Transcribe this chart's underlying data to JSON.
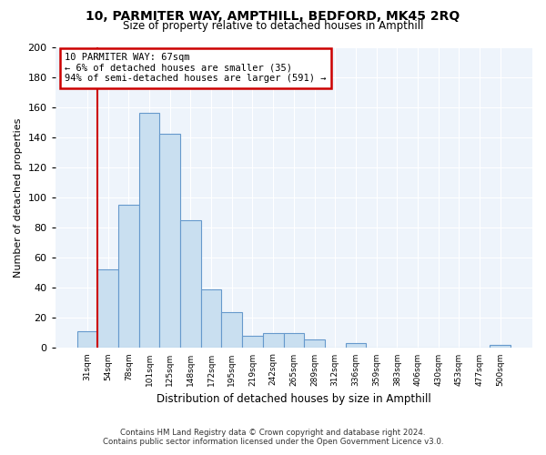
{
  "title": "10, PARMITER WAY, AMPTHILL, BEDFORD, MK45 2RQ",
  "subtitle": "Size of property relative to detached houses in Ampthill",
  "xlabel": "Distribution of detached houses by size in Ampthill",
  "ylabel": "Number of detached properties",
  "bin_labels": [
    "31sqm",
    "54sqm",
    "78sqm",
    "101sqm",
    "125sqm",
    "148sqm",
    "172sqm",
    "195sqm",
    "219sqm",
    "242sqm",
    "265sqm",
    "289sqm",
    "312sqm",
    "336sqm",
    "359sqm",
    "383sqm",
    "406sqm",
    "430sqm",
    "453sqm",
    "477sqm",
    "500sqm"
  ],
  "bar_heights": [
    11,
    52,
    95,
    156,
    142,
    85,
    39,
    24,
    8,
    10,
    10,
    6,
    0,
    3,
    0,
    0,
    0,
    0,
    0,
    0,
    2
  ],
  "bar_color": "#c9dff0",
  "bar_edge_color": "#6699cc",
  "marker_line_color": "#cc0000",
  "annotation_box_color": "#cc0000",
  "annotation_title": "10 PARMITER WAY: 67sqm",
  "annotation_line1": "← 6% of detached houses are smaller (35)",
  "annotation_line2": "94% of semi-detached houses are larger (591) →",
  "ylim": [
    0,
    200
  ],
  "yticks": [
    0,
    20,
    40,
    60,
    80,
    100,
    120,
    140,
    160,
    180,
    200
  ],
  "plot_bg_color": "#eef4fb",
  "fig_bg_color": "#ffffff",
  "grid_color": "#ffffff",
  "footer_line1": "Contains HM Land Registry data © Crown copyright and database right 2024.",
  "footer_line2": "Contains public sector information licensed under the Open Government Licence v3.0."
}
